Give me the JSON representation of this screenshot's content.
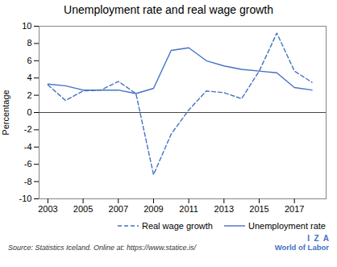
{
  "chart_data": {
    "type": "line",
    "title": "Unemployment rate and real wage growth",
    "ylabel": "Percentage",
    "annotations": [
      "Source: Statistics Iceland. Online at: https://www.statice.is/",
      "I  Z  A",
      "World of Labor"
    ],
    "x": [
      2003,
      2004,
      2005,
      2006,
      2007,
      2008,
      2009,
      2010,
      2011,
      2012,
      2013,
      2014,
      2015,
      2016,
      2017,
      2018
    ],
    "series": [
      {
        "name": "Real wage growth",
        "color": "#4472C4",
        "line_style": "dashed",
        "values": [
          3.2,
          1.4,
          2.5,
          2.6,
          3.6,
          2.2,
          -7.2,
          -2.5,
          0.3,
          2.5,
          2.3,
          1.6,
          4.8,
          9.2,
          4.8,
          3.5
        ]
      },
      {
        "name": "Unemployment rate",
        "color": "#4472C4",
        "line_style": "solid",
        "values": [
          3.3,
          3.1,
          2.6,
          2.6,
          2.6,
          2.2,
          2.8,
          7.2,
          7.5,
          6.0,
          5.4,
          5.0,
          4.8,
          4.6,
          2.9,
          2.6
        ]
      }
    ],
    "hline": 0,
    "xlim": [
      2002.5,
      2018.8
    ],
    "xticks": [
      2003,
      2005,
      2007,
      2009,
      2011,
      2013,
      2015,
      2017
    ],
    "ylim": [
      -10,
      10
    ],
    "yticks": [
      -10,
      -8,
      -6,
      -4,
      -2,
      0,
      2,
      4,
      6,
      8,
      10
    ],
    "grid": false,
    "legend": "lower right"
  }
}
